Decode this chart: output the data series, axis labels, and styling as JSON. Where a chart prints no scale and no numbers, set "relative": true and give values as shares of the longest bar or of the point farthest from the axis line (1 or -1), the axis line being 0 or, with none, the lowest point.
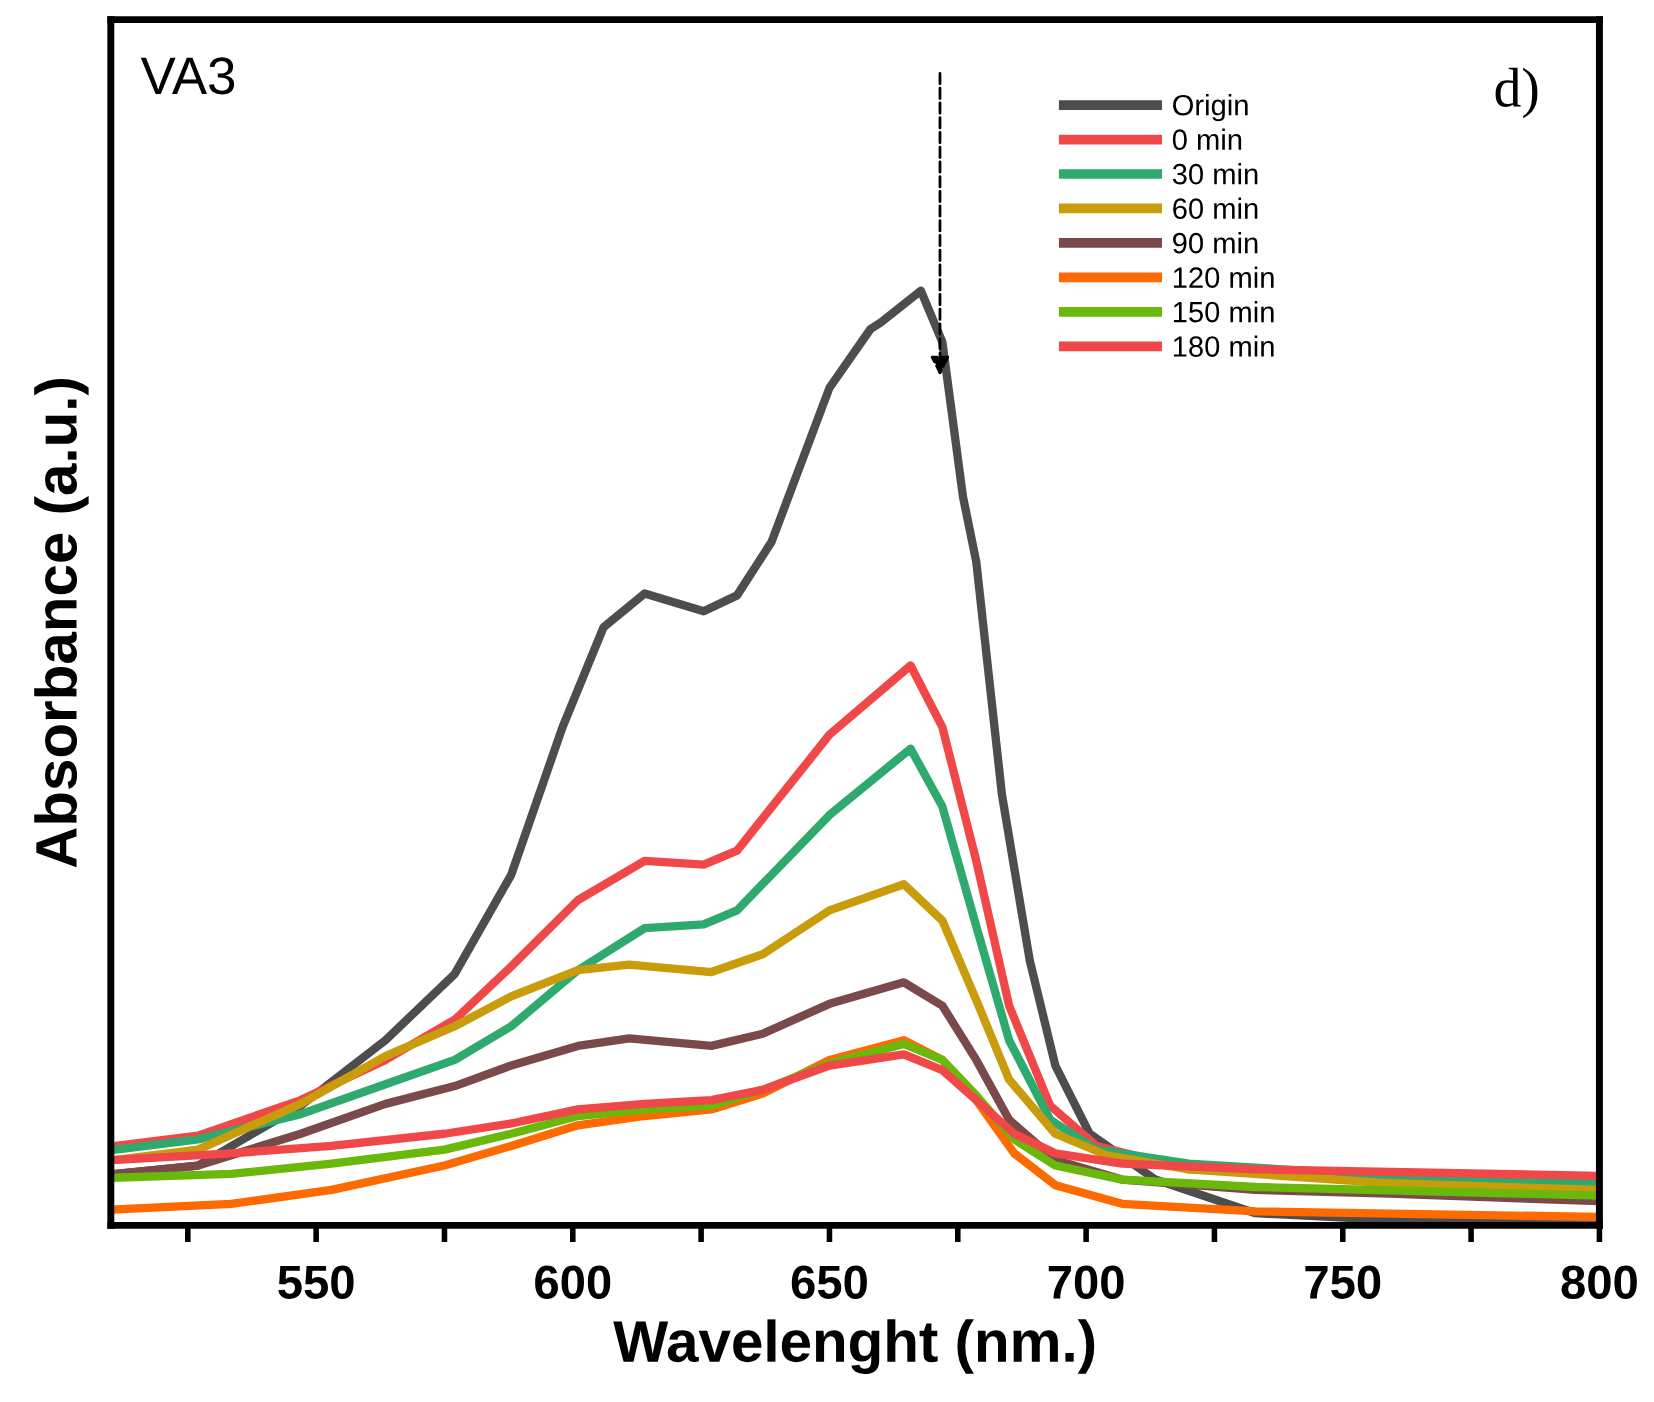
{
  "chart_data": {
    "type": "line",
    "relative": true,
    "xlabel": "Wavelenght (nm.)",
    "ylabel": "Absorbance (a.u.)",
    "annotations": [
      "VA3",
      "d)"
    ],
    "xlim": [
      510,
      800
    ],
    "xticks": [
      {
        "value": 525,
        "label": null
      },
      550,
      {
        "value": 575,
        "label": null
      },
      600,
      {
        "value": 625,
        "label": null
      },
      650,
      {
        "value": 675,
        "label": null
      },
      700,
      {
        "value": 725,
        "label": null
      },
      750,
      {
        "value": 775,
        "label": null
      },
      800
    ],
    "tick_labels": "x",
    "grid": false,
    "legend": "top right",
    "marker": "none",
    "line_style": "solid",
    "series": [
      {
        "name": "Origin",
        "color": "#4d4d4d",
        "x": [
          511,
          527,
          547,
          563.5,
          577,
          588,
          598,
          606,
          614,
          625.5,
          632,
          638.7,
          650,
          658,
          660,
          667.8,
          672,
          676,
          678.6,
          683.6,
          689,
          694,
          700.7,
          713.5,
          733,
          759,
          799
        ],
        "values": [
          0.055,
          0.064,
          0.128,
          0.198,
          0.269,
          0.375,
          0.533,
          0.64,
          0.676,
          0.657,
          0.674,
          0.731,
          0.896,
          0.959,
          0.966,
          1.0,
          0.945,
          0.78,
          0.71,
          0.461,
          0.284,
          0.171,
          0.098,
          0.049,
          0.013,
          0.006,
          0.004
        ]
      },
      {
        "name": "0 min",
        "color": "#f04848",
        "x": [
          511,
          527,
          547,
          563.5,
          577,
          588,
          601,
          614,
          625.5,
          632,
          650,
          665.8,
          672,
          678.6,
          685,
          693,
          702,
          720,
          759,
          799
        ],
        "values": [
          0.085,
          0.096,
          0.134,
          0.177,
          0.22,
          0.277,
          0.348,
          0.39,
          0.386,
          0.401,
          0.525,
          0.599,
          0.533,
          0.39,
          0.235,
          0.128,
          0.085,
          0.06,
          0.053,
          0.051
        ]
      },
      {
        "name": "30 min",
        "color": "#2eaa6e",
        "x": [
          511,
          527,
          547,
          563.5,
          577,
          588,
          601,
          614,
          625.5,
          632,
          650,
          665.8,
          672,
          678.6,
          685,
          693,
          702,
          720,
          759,
          799
        ],
        "values": [
          0.081,
          0.092,
          0.119,
          0.151,
          0.177,
          0.213,
          0.273,
          0.318,
          0.322,
          0.337,
          0.439,
          0.51,
          0.448,
          0.32,
          0.198,
          0.113,
          0.081,
          0.066,
          0.053,
          0.045
        ]
      },
      {
        "name": "60 min",
        "color": "#c89c0a",
        "x": [
          511,
          527,
          547,
          563.5,
          577,
          588,
          601,
          611,
          627,
          637,
          650,
          664.5,
          672,
          678.6,
          685,
          694,
          704,
          720,
          759,
          799
        ],
        "values": [
          0.07,
          0.081,
          0.13,
          0.181,
          0.213,
          0.245,
          0.273,
          0.279,
          0.271,
          0.29,
          0.337,
          0.365,
          0.326,
          0.241,
          0.156,
          0.098,
          0.075,
          0.06,
          0.045,
          0.038
        ]
      },
      {
        "name": "90 min",
        "color": "#7a4a4a",
        "x": [
          511,
          527,
          547,
          563.5,
          577,
          588,
          601,
          611,
          627,
          637,
          650,
          664.5,
          672,
          678.6,
          685,
          694,
          707,
          733,
          759,
          799
        ],
        "values": [
          0.055,
          0.064,
          0.098,
          0.13,
          0.149,
          0.171,
          0.192,
          0.2,
          0.192,
          0.205,
          0.237,
          0.26,
          0.235,
          0.177,
          0.113,
          0.07,
          0.049,
          0.038,
          0.034,
          0.026
        ]
      },
      {
        "name": "120 min",
        "color": "#ff6a00",
        "x": [
          511,
          533.5,
          553,
          575,
          588,
          601,
          614,
          627,
          637,
          650,
          664.5,
          672,
          678.6,
          686,
          694,
          707,
          733,
          799
        ],
        "values": [
          0.017,
          0.023,
          0.038,
          0.064,
          0.085,
          0.107,
          0.117,
          0.124,
          0.141,
          0.177,
          0.198,
          0.177,
          0.134,
          0.077,
          0.043,
          0.023,
          0.015,
          0.009
        ]
      },
      {
        "name": "150 min",
        "color": "#6ab80a",
        "x": [
          511,
          533.5,
          553,
          575,
          588,
          601,
          614,
          627,
          637,
          650,
          664.5,
          672,
          678.6,
          686,
          694,
          707,
          733,
          799
        ],
        "values": [
          0.051,
          0.055,
          0.066,
          0.081,
          0.098,
          0.117,
          0.124,
          0.128,
          0.145,
          0.173,
          0.194,
          0.177,
          0.139,
          0.092,
          0.064,
          0.049,
          0.041,
          0.032
        ]
      },
      {
        "name": "180 min",
        "color": "#f04848",
        "x": [
          511,
          533.5,
          553,
          575,
          588,
          601,
          614,
          627,
          637,
          650,
          664.5,
          672,
          678.6,
          686,
          694,
          707,
          733,
          799
        ],
        "values": [
          0.07,
          0.077,
          0.085,
          0.098,
          0.109,
          0.124,
          0.13,
          0.134,
          0.145,
          0.171,
          0.183,
          0.166,
          0.134,
          0.098,
          0.077,
          0.066,
          0.06,
          0.053
        ]
      }
    ]
  }
}
